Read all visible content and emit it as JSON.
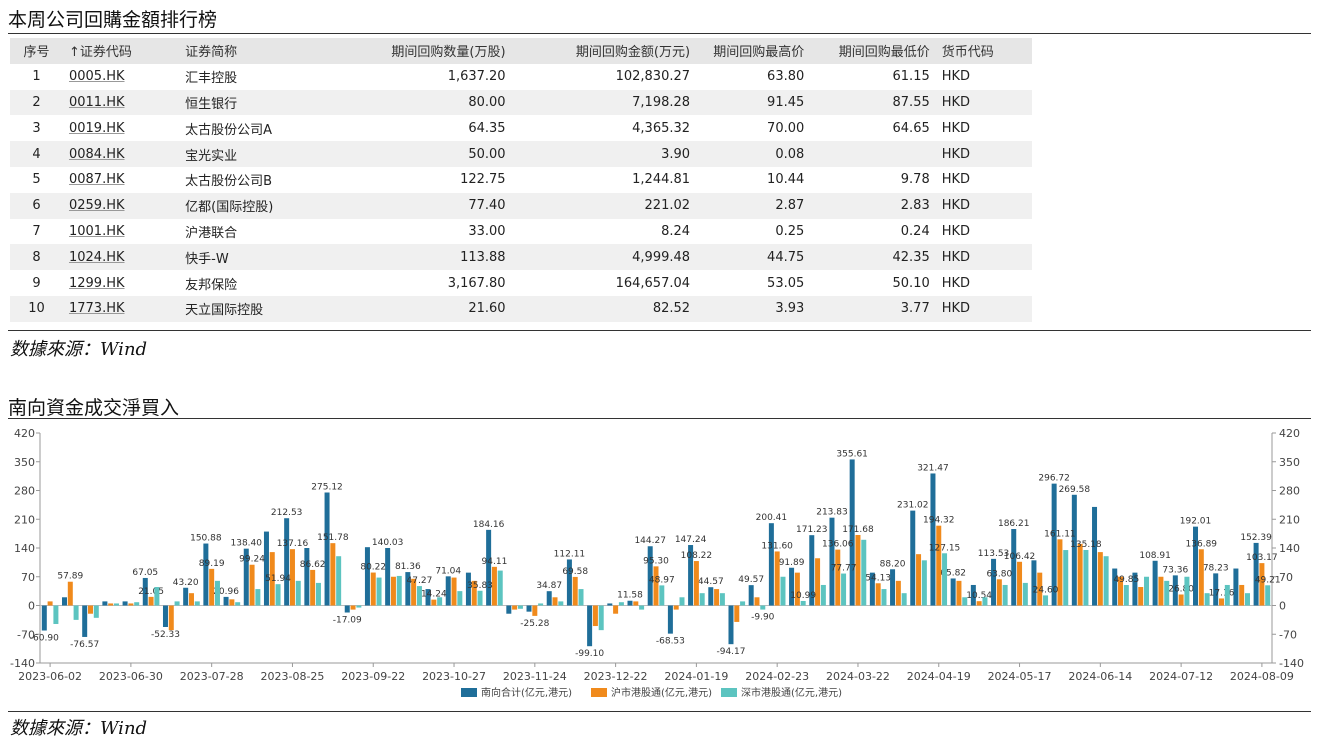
{
  "buyback": {
    "title": "本周公司回購金額排行榜",
    "headers": [
      "序号",
      "↑证券代码",
      "证券简称",
      "期间回购数量(万股)",
      "期间回购金额(万元)",
      "期间回购最高价",
      "期间回购最低价",
      "货币代码"
    ],
    "rows": [
      [
        "1",
        "0005.HK",
        "汇丰控股",
        "1,637.20",
        "102,830.27",
        "63.80",
        "61.15",
        "HKD"
      ],
      [
        "2",
        "0011.HK",
        "恒生银行",
        "80.00",
        "7,198.28",
        "91.45",
        "87.55",
        "HKD"
      ],
      [
        "3",
        "0019.HK",
        "太古股份公司A",
        "64.35",
        "4,365.32",
        "70.00",
        "64.65",
        "HKD"
      ],
      [
        "4",
        "0084.HK",
        "宝光实业",
        "50.00",
        "3.90",
        "0.08",
        null,
        "HKD"
      ],
      [
        "5",
        "0087.HK",
        "太古股份公司B",
        "122.75",
        "1,244.81",
        "10.44",
        "9.78",
        "HKD"
      ],
      [
        "6",
        "0259.HK",
        "亿都(国际控股)",
        "77.40",
        "221.02",
        "2.87",
        "2.83",
        "HKD"
      ],
      [
        "7",
        "1001.HK",
        "沪港联合",
        "33.00",
        "8.24",
        "0.25",
        "0.24",
        "HKD"
      ],
      [
        "8",
        "1024.HK",
        "快手-W",
        "113.88",
        "4,999.48",
        "44.75",
        "42.35",
        "HKD"
      ],
      [
        "9",
        "1299.HK",
        "友邦保险",
        "3,167.80",
        "164,657.04",
        "53.05",
        "50.10",
        "HKD"
      ],
      [
        "10",
        "1773.HK",
        "天立国际控股",
        "21.60",
        "82.52",
        "3.93",
        "3.77",
        "HKD"
      ]
    ],
    "source": "数據來源：Wind"
  },
  "flows": {
    "title": "南向資金成交淨買入",
    "source": "数據來源：Wind"
  },
  "chart_data": {
    "type": "bar",
    "categories": [
      "2023-06-02",
      null,
      null,
      null,
      "2023-06-30",
      null,
      null,
      null,
      "2023-07-28",
      null,
      null,
      null,
      "2023-08-25",
      null,
      null,
      null,
      "2023-09-22",
      null,
      null,
      null,
      "2023-10-27",
      null,
      null,
      null,
      "2023-11-24",
      null,
      null,
      null,
      "2023-12-22",
      null,
      null,
      null,
      "2024-01-19",
      null,
      null,
      null,
      "2024-02-23",
      null,
      null,
      null,
      "2024-03-22",
      null,
      null,
      null,
      "2024-04-19",
      null,
      null,
      null,
      "2024-05-17",
      null,
      null,
      null,
      "2024-06-14",
      null,
      null,
      null,
      "2024-07-12",
      null,
      null,
      null,
      "2024-08-09"
    ],
    "ylim": [
      -140,
      420
    ],
    "yticks": [
      -140,
      -70,
      0,
      70,
      140,
      210,
      280,
      350,
      420
    ],
    "legend": "bottom",
    "series": [
      {
        "name": "南向合计(亿元,港元)",
        "color": "#1f6e99",
        "values": [
          -60.9,
          20,
          -76.57,
          10,
          10,
          67.05,
          -52.33,
          43.2,
          150.88,
          20.96,
          138.4,
          180,
          212.53,
          140,
          275.12,
          -17.09,
          142,
          140.03,
          81.36,
          40,
          71.04,
          80,
          184.16,
          -20,
          -15,
          34.87,
          112.11,
          -99.1,
          5,
          11.58,
          144.27,
          -68.53,
          147.24,
          44.57,
          -94.17,
          49.57,
          200.41,
          91.89,
          171.23,
          213.83,
          355.61,
          80,
          88.2,
          231.02,
          321.47,
          65.82,
          50,
          113.53,
          186.21,
          110,
          296.72,
          269.58,
          240,
          90,
          80,
          108.91,
          73.36,
          192.01,
          78.23,
          90,
          152.39
        ],
        "value_labels": [
          "-60.90",
          null,
          "-76.57",
          null,
          null,
          "67.05",
          "-52.33",
          "43.20",
          "150.88",
          "20.96",
          "138.40",
          null,
          "212.53",
          null,
          "275.12",
          "-17.09",
          null,
          "140.03",
          "81.36",
          null,
          "71.04",
          null,
          "184.16",
          null,
          null,
          "34.87",
          "112.11",
          "-99.10",
          null,
          "11.58",
          "144.27",
          "-68.53",
          "147.24",
          "44.57",
          "-94.17",
          "49.57",
          "200.41",
          "91.89",
          "171.23",
          "213.83",
          "355.61",
          null,
          "88.20",
          "231.02",
          "321.47",
          "65.82",
          null,
          "113.53",
          "186.21",
          null,
          "296.72",
          "269.58",
          null,
          null,
          null,
          "108.91",
          "73.36",
          "192.01",
          "78.23",
          null,
          "152.39"
        ]
      },
      {
        "name": "沪市港股通(亿元,港元)",
        "color": "#f08a1c",
        "values": [
          10,
          57.89,
          -20,
          5,
          5,
          21.05,
          -60,
          30,
          89.19,
          15,
          99.24,
          130,
          137.16,
          86.62,
          151.78,
          -10,
          80.22,
          70,
          65,
          14.24,
          68,
          60,
          94.11,
          -10,
          -25.28,
          20,
          69.58,
          -50,
          -20,
          10,
          95.3,
          -10,
          108.22,
          40,
          -40,
          20,
          131.6,
          80,
          115,
          136.06,
          171.68,
          54.13,
          60,
          125,
          194.32,
          60,
          10.54,
          63.8,
          106.42,
          80,
          161.11,
          150,
          130,
          70,
          45,
          70,
          26.8,
          136.89,
          17.16,
          50,
          103.17
        ],
        "value_labels": [
          null,
          "57.89",
          null,
          null,
          null,
          "21.05",
          null,
          null,
          "89.19",
          null,
          "99.24",
          null,
          "137.16",
          "86.62",
          "151.78",
          null,
          "80.22",
          null,
          null,
          "14.24",
          null,
          null,
          "94.11",
          null,
          "-25.28",
          null,
          "69.58",
          null,
          null,
          null,
          "95.30",
          null,
          "108.22",
          null,
          null,
          null,
          "131.60",
          null,
          null,
          "136.06",
          "171.68",
          "54.13",
          null,
          null,
          "194.32",
          null,
          "10.54",
          "63.80",
          "106.42",
          null,
          "161.11",
          null,
          null,
          null,
          null,
          null,
          "26.80",
          "136.89",
          "17.16",
          null,
          "103.17"
        ]
      },
      {
        "name": "深市港股通(亿元,港元)",
        "color": "#5cc4c0",
        "values": [
          -45,
          -35,
          -30,
          5,
          8,
          45,
          10,
          10,
          60,
          8,
          40,
          51.94,
          60,
          55,
          120,
          -5,
          68,
          72,
          47.27,
          20,
          35,
          35.83,
          85,
          -8,
          5,
          10,
          40,
          -60,
          8,
          -10,
          48.97,
          20,
          30,
          30,
          10,
          -9.9,
          70,
          10.99,
          50,
          77.77,
          160,
          40,
          30,
          110,
          127.15,
          20,
          20,
          50,
          55,
          24.6,
          135,
          135.18,
          120,
          49.85,
          70,
          60,
          70,
          30,
          50,
          30,
          49.21
        ],
        "value_labels": [
          null,
          null,
          null,
          null,
          null,
          null,
          null,
          null,
          null,
          null,
          null,
          "51.94",
          null,
          null,
          null,
          null,
          null,
          null,
          "47.27",
          null,
          null,
          "35.83",
          null,
          null,
          null,
          null,
          null,
          null,
          null,
          null,
          "48.97",
          null,
          null,
          null,
          null,
          "-9.90",
          null,
          "10.99",
          null,
          "77.77",
          null,
          null,
          null,
          null,
          "127.15",
          null,
          null,
          null,
          null,
          "24.60",
          null,
          "135.18",
          null,
          "49.85",
          null,
          null,
          null,
          null,
          null,
          null,
          "49.21"
        ]
      }
    ]
  }
}
